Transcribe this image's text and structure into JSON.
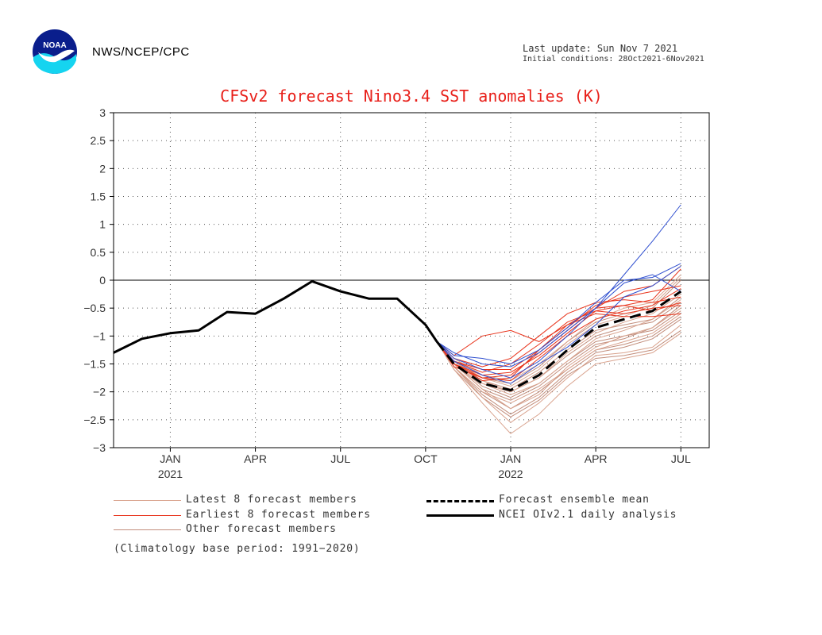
{
  "header": {
    "logo_text": "NOAA",
    "org": "NWS/NCEP/CPC",
    "last_update": "Last update: Sun Nov 7 2021",
    "initial_conditions": "Initial conditions: 28Oct2021-6Nov2021"
  },
  "colors": {
    "title": "#e8201a",
    "latest": "#d9a38e",
    "earliest": "#e8341c",
    "other": "#c28d7b",
    "blue": "#3050d0",
    "black": "#000000"
  },
  "chart_data": {
    "type": "line",
    "title": "CFSv2 forecast Nino3.4 SST anomalies (K)",
    "ylim": [
      -3,
      3
    ],
    "y_ticks": [
      "3",
      "2.5",
      "2",
      "1.5",
      "1",
      "0.5",
      "0",
      "−0.5",
      "−1",
      "−1.5",
      "−2",
      "−2.5",
      "−3"
    ],
    "y_tick_values": [
      3,
      2.5,
      2,
      1.5,
      1,
      0.5,
      0,
      -0.5,
      -1,
      -1.5,
      -2,
      -2.5,
      -3
    ],
    "xlim": [
      0,
      21
    ],
    "x_ticks": [
      {
        "label": "JAN",
        "year": "2021",
        "x": 2
      },
      {
        "label": "APR",
        "year": "",
        "x": 5
      },
      {
        "label": "JUL",
        "year": "",
        "x": 8
      },
      {
        "label": "OCT",
        "year": "",
        "x": 11
      },
      {
        "label": "JAN",
        "year": "2022",
        "x": 14
      },
      {
        "label": "APR",
        "year": "",
        "x": 17
      },
      {
        "label": "JUL",
        "year": "",
        "x": 20
      }
    ],
    "observed": {
      "name": "NCEI OIv2.1 daily analysis",
      "x": [
        0,
        1,
        2,
        3,
        4,
        5,
        6,
        7,
        8,
        9,
        10,
        11,
        11.4
      ],
      "y": [
        -1.3,
        -1.05,
        -0.95,
        -0.9,
        -0.57,
        -0.6,
        -0.33,
        -0.02,
        -0.2,
        -0.33,
        -0.33,
        -0.8,
        -1.1
      ]
    },
    "ensemble_mean": {
      "name": "Forecast ensemble mean",
      "x": [
        11.4,
        12,
        13,
        14,
        15,
        16,
        17,
        18,
        19,
        20
      ],
      "y": [
        -1.1,
        -1.5,
        -1.85,
        -1.97,
        -1.7,
        -1.25,
        -0.85,
        -0.7,
        -0.55,
        -0.2
      ]
    },
    "members": [
      {
        "group": "latest",
        "y": [
          -1.1,
          -1.45,
          -1.8,
          -2.0,
          -1.75,
          -1.3,
          -0.95,
          -0.75,
          -0.6,
          -0.25
        ]
      },
      {
        "group": "latest",
        "y": [
          -1.1,
          -1.5,
          -1.95,
          -2.3,
          -2.05,
          -1.55,
          -1.2,
          -1.0,
          -0.85,
          -0.5
        ]
      },
      {
        "group": "latest",
        "y": [
          -1.1,
          -1.55,
          -2.1,
          -2.55,
          -2.2,
          -1.75,
          -1.35,
          -1.3,
          -1.2,
          -0.8
        ]
      },
      {
        "group": "latest",
        "y": [
          -1.1,
          -1.4,
          -1.7,
          -1.8,
          -1.5,
          -1.1,
          -0.7,
          -0.5,
          -0.4,
          0.1
        ]
      },
      {
        "group": "latest",
        "y": [
          -1.1,
          -1.6,
          -2.2,
          -2.75,
          -2.4,
          -1.9,
          -1.5,
          -1.4,
          -1.3,
          -0.95
        ]
      },
      {
        "group": "latest",
        "y": [
          -1.1,
          -1.5,
          -1.85,
          -2.05,
          -1.85,
          -1.45,
          -1.05,
          -0.9,
          -0.7,
          -0.35
        ]
      },
      {
        "group": "latest",
        "y": [
          -1.1,
          -1.45,
          -1.75,
          -1.9,
          -1.6,
          -1.15,
          -0.8,
          -0.65,
          -0.45,
          0.05
        ]
      },
      {
        "group": "latest",
        "y": [
          -1.1,
          -1.55,
          -2.0,
          -2.2,
          -1.95,
          -1.6,
          -1.25,
          -1.1,
          -0.95,
          -0.6
        ]
      },
      {
        "group": "earliest",
        "y": [
          -1.1,
          -1.45,
          -1.6,
          -1.6,
          -1.25,
          -0.85,
          -0.45,
          -0.3,
          -0.2,
          -0.1
        ]
      },
      {
        "group": "earliest",
        "y": [
          -1.1,
          -1.35,
          -1.0,
          -0.9,
          -1.1,
          -0.8,
          -0.5,
          -0.45,
          -0.55,
          -0.4
        ]
      },
      {
        "group": "earliest",
        "y": [
          -1.1,
          -1.5,
          -1.7,
          -1.65,
          -1.35,
          -0.95,
          -0.55,
          -0.45,
          -0.35,
          0.2
        ]
      },
      {
        "group": "earliest",
        "y": [
          -1.1,
          -1.5,
          -1.8,
          -1.75,
          -1.25,
          -0.8,
          -0.6,
          -0.65,
          -0.65,
          -0.6
        ]
      },
      {
        "group": "earliest",
        "y": [
          -1.1,
          -1.4,
          -1.55,
          -1.4,
          -1.0,
          -0.6,
          -0.4,
          -0.35,
          -0.4,
          -0.3
        ]
      },
      {
        "group": "earliest",
        "y": [
          -1.1,
          -1.55,
          -1.75,
          -1.7,
          -1.3,
          -0.9,
          -0.5,
          -0.2,
          -0.1,
          0.25
        ]
      },
      {
        "group": "earliest",
        "y": [
          -1.1,
          -1.45,
          -1.65,
          -1.5,
          -1.15,
          -0.75,
          -0.55,
          -0.6,
          -0.5,
          -0.45
        ]
      },
      {
        "group": "earliest",
        "y": [
          -1.1,
          -1.5,
          -1.75,
          -1.8,
          -1.4,
          -1.0,
          -0.7,
          -0.55,
          -0.45,
          -0.15
        ]
      },
      {
        "group": "other",
        "y": [
          -1.1,
          -1.5,
          -1.9,
          -2.1,
          -1.85,
          -1.45,
          -1.1,
          -1.0,
          -0.9,
          -0.55
        ]
      },
      {
        "group": "other",
        "y": [
          -1.1,
          -1.55,
          -2.05,
          -2.4,
          -2.1,
          -1.65,
          -1.3,
          -1.2,
          -1.05,
          -0.7
        ]
      },
      {
        "group": "other",
        "y": [
          -1.1,
          -1.45,
          -1.8,
          -1.95,
          -1.65,
          -1.25,
          -0.9,
          -0.8,
          -0.7,
          -0.3
        ]
      },
      {
        "group": "other",
        "y": [
          -1.1,
          -1.5,
          -1.95,
          -2.15,
          -1.9,
          -1.5,
          -1.15,
          -1.05,
          -0.85,
          -0.45
        ]
      },
      {
        "group": "other",
        "y": [
          -1.1,
          -1.6,
          -2.1,
          -2.45,
          -2.15,
          -1.7,
          -1.4,
          -1.35,
          -1.25,
          -0.9
        ]
      },
      {
        "group": "other",
        "y": [
          -1.1,
          -1.45,
          -1.75,
          -1.85,
          -1.55,
          -1.1,
          -0.75,
          -0.6,
          -0.5,
          0.0
        ]
      },
      {
        "group": "other",
        "y": [
          -1.1,
          -1.5,
          -1.85,
          -2.0,
          -1.75,
          -1.35,
          -1.0,
          -0.85,
          -0.75,
          -0.4
        ]
      },
      {
        "group": "other",
        "y": [
          -1.1,
          -1.55,
          -2.0,
          -2.3,
          -2.0,
          -1.6,
          -1.25,
          -1.15,
          -1.0,
          -0.65
        ]
      },
      {
        "group": "blue",
        "y": [
          -1.1,
          -1.35,
          -1.4,
          -1.5,
          -1.25,
          -0.85,
          -0.4,
          0.0,
          0.05,
          0.3
        ]
      },
      {
        "group": "blue",
        "y": [
          -1.1,
          -1.4,
          -1.6,
          -1.75,
          -1.45,
          -1.0,
          -0.5,
          -0.05,
          0.1,
          -0.2
        ]
      },
      {
        "group": "blue",
        "y": [
          -1.1,
          -1.3,
          -1.5,
          -1.55,
          -1.3,
          -0.9,
          -0.5,
          0.1,
          0.7,
          1.35
        ]
      },
      {
        "group": "blue",
        "y": [
          -1.1,
          -1.45,
          -1.7,
          -1.85,
          -1.5,
          -1.2,
          -0.8,
          -0.3,
          -0.1,
          0.25
        ]
      }
    ],
    "member_x": [
      11.4,
      12,
      13,
      14,
      15,
      16,
      17,
      18,
      19,
      20
    ],
    "legend": {
      "latest": "Latest 8 forecast members",
      "earliest": "Earliest 8 forecast members",
      "other": "Other forecast members",
      "mean": "Forecast ensemble mean",
      "observed": "NCEI OIv2.1 daily analysis",
      "note": "(Climatology base period: 1991−2020)"
    }
  }
}
